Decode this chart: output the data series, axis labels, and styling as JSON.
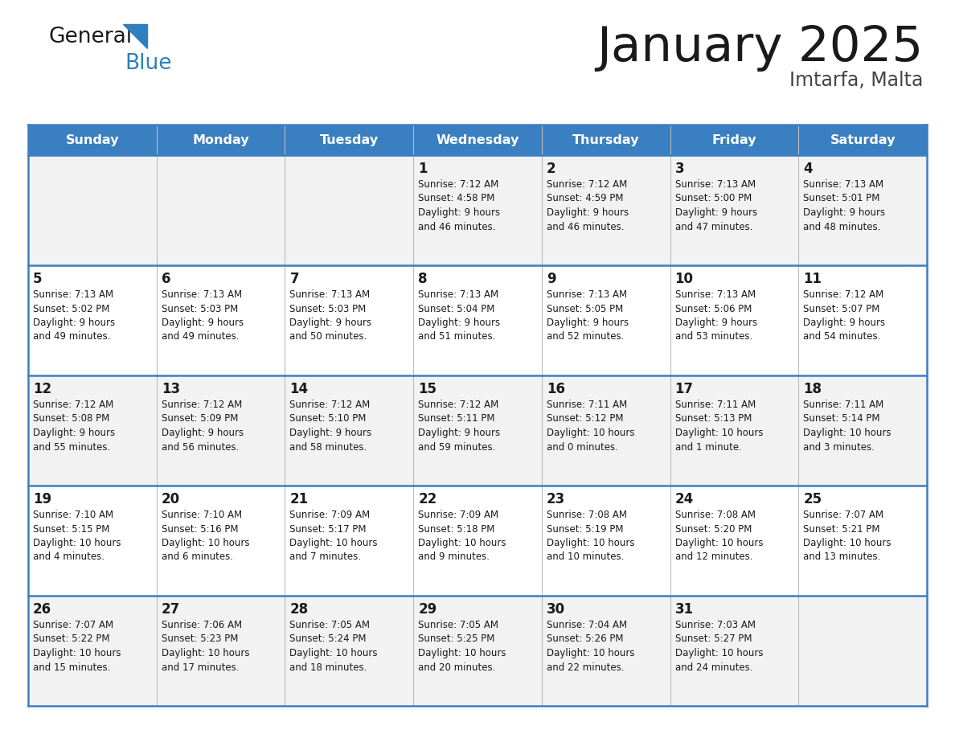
{
  "title": "January 2025",
  "location": "Imtarfa, Malta",
  "header_color": "#3A7FC1",
  "header_text_color": "#FFFFFF",
  "cell_bg_even": "#F2F2F2",
  "cell_bg_odd": "#FFFFFF",
  "day_names": [
    "Sunday",
    "Monday",
    "Tuesday",
    "Wednesday",
    "Thursday",
    "Friday",
    "Saturday"
  ],
  "weeks": [
    [
      {
        "day": "",
        "sunrise": "",
        "sunset": "",
        "daylight": ""
      },
      {
        "day": "",
        "sunrise": "",
        "sunset": "",
        "daylight": ""
      },
      {
        "day": "",
        "sunrise": "",
        "sunset": "",
        "daylight": ""
      },
      {
        "day": "1",
        "sunrise": "7:12 AM",
        "sunset": "4:58 PM",
        "daylight": "9 hours and 46 minutes."
      },
      {
        "day": "2",
        "sunrise": "7:12 AM",
        "sunset": "4:59 PM",
        "daylight": "9 hours and 46 minutes."
      },
      {
        "day": "3",
        "sunrise": "7:13 AM",
        "sunset": "5:00 PM",
        "daylight": "9 hours and 47 minutes."
      },
      {
        "day": "4",
        "sunrise": "7:13 AM",
        "sunset": "5:01 PM",
        "daylight": "9 hours and 48 minutes."
      }
    ],
    [
      {
        "day": "5",
        "sunrise": "7:13 AM",
        "sunset": "5:02 PM",
        "daylight": "9 hours and 49 minutes."
      },
      {
        "day": "6",
        "sunrise": "7:13 AM",
        "sunset": "5:03 PM",
        "daylight": "9 hours and 49 minutes."
      },
      {
        "day": "7",
        "sunrise": "7:13 AM",
        "sunset": "5:03 PM",
        "daylight": "9 hours and 50 minutes."
      },
      {
        "day": "8",
        "sunrise": "7:13 AM",
        "sunset": "5:04 PM",
        "daylight": "9 hours and 51 minutes."
      },
      {
        "day": "9",
        "sunrise": "7:13 AM",
        "sunset": "5:05 PM",
        "daylight": "9 hours and 52 minutes."
      },
      {
        "day": "10",
        "sunrise": "7:13 AM",
        "sunset": "5:06 PM",
        "daylight": "9 hours and 53 minutes."
      },
      {
        "day": "11",
        "sunrise": "7:12 AM",
        "sunset": "5:07 PM",
        "daylight": "9 hours and 54 minutes."
      }
    ],
    [
      {
        "day": "12",
        "sunrise": "7:12 AM",
        "sunset": "5:08 PM",
        "daylight": "9 hours and 55 minutes."
      },
      {
        "day": "13",
        "sunrise": "7:12 AM",
        "sunset": "5:09 PM",
        "daylight": "9 hours and 56 minutes."
      },
      {
        "day": "14",
        "sunrise": "7:12 AM",
        "sunset": "5:10 PM",
        "daylight": "9 hours and 58 minutes."
      },
      {
        "day": "15",
        "sunrise": "7:12 AM",
        "sunset": "5:11 PM",
        "daylight": "9 hours and 59 minutes."
      },
      {
        "day": "16",
        "sunrise": "7:11 AM",
        "sunset": "5:12 PM",
        "daylight": "10 hours and 0 minutes."
      },
      {
        "day": "17",
        "sunrise": "7:11 AM",
        "sunset": "5:13 PM",
        "daylight": "10 hours and 1 minute."
      },
      {
        "day": "18",
        "sunrise": "7:11 AM",
        "sunset": "5:14 PM",
        "daylight": "10 hours and 3 minutes."
      }
    ],
    [
      {
        "day": "19",
        "sunrise": "7:10 AM",
        "sunset": "5:15 PM",
        "daylight": "10 hours and 4 minutes."
      },
      {
        "day": "20",
        "sunrise": "7:10 AM",
        "sunset": "5:16 PM",
        "daylight": "10 hours and 6 minutes."
      },
      {
        "day": "21",
        "sunrise": "7:09 AM",
        "sunset": "5:17 PM",
        "daylight": "10 hours and 7 minutes."
      },
      {
        "day": "22",
        "sunrise": "7:09 AM",
        "sunset": "5:18 PM",
        "daylight": "10 hours and 9 minutes."
      },
      {
        "day": "23",
        "sunrise": "7:08 AM",
        "sunset": "5:19 PM",
        "daylight": "10 hours and 10 minutes."
      },
      {
        "day": "24",
        "sunrise": "7:08 AM",
        "sunset": "5:20 PM",
        "daylight": "10 hours and 12 minutes."
      },
      {
        "day": "25",
        "sunrise": "7:07 AM",
        "sunset": "5:21 PM",
        "daylight": "10 hours and 13 minutes."
      }
    ],
    [
      {
        "day": "26",
        "sunrise": "7:07 AM",
        "sunset": "5:22 PM",
        "daylight": "10 hours and 15 minutes."
      },
      {
        "day": "27",
        "sunrise": "7:06 AM",
        "sunset": "5:23 PM",
        "daylight": "10 hours and 17 minutes."
      },
      {
        "day": "28",
        "sunrise": "7:05 AM",
        "sunset": "5:24 PM",
        "daylight": "10 hours and 18 minutes."
      },
      {
        "day": "29",
        "sunrise": "7:05 AM",
        "sunset": "5:25 PM",
        "daylight": "10 hours and 20 minutes."
      },
      {
        "day": "30",
        "sunrise": "7:04 AM",
        "sunset": "5:26 PM",
        "daylight": "10 hours and 22 minutes."
      },
      {
        "day": "31",
        "sunrise": "7:03 AM",
        "sunset": "5:27 PM",
        "daylight": "10 hours and 24 minutes."
      },
      {
        "day": "",
        "sunrise": "",
        "sunset": "",
        "daylight": ""
      }
    ]
  ],
  "logo_color_general": "#1A1A1A",
  "logo_color_blue": "#2E7FBF",
  "logo_triangle_color": "#2E7FBF",
  "title_color": "#1A1A1A",
  "location_color": "#444444",
  "border_color": "#3A7FC1",
  "divider_color": "#3A7FC1",
  "text_color": "#1A1A1A",
  "fig_width": 11.88,
  "fig_height": 9.18,
  "dpi": 100
}
